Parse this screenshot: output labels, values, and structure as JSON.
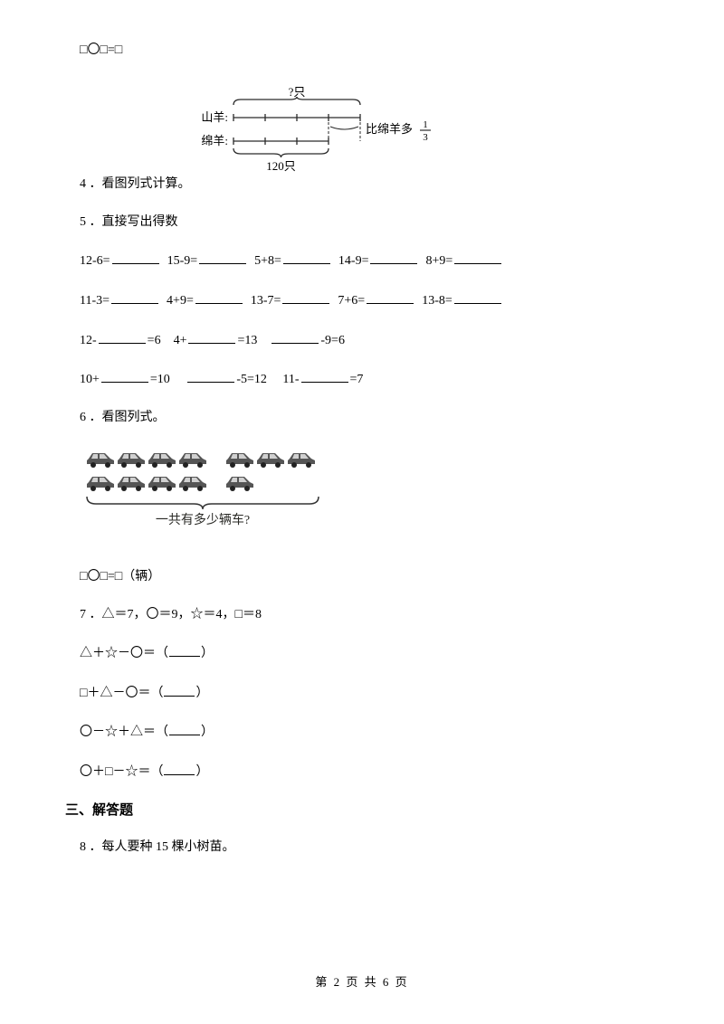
{
  "q_top": "□〇□=□",
  "diagram1": {
    "top_label": "?只",
    "row1_label": "山羊:",
    "row2_label": "绵羊:",
    "right_note_prefix": "比绵羊多",
    "right_note_frac_num": "1",
    "right_note_frac_den": "3",
    "bottom_label": "120只",
    "color_line": "#2a2a2a",
    "color_text": "#000000"
  },
  "q4": "4 ．看图列式计算。",
  "q5": "5 ．直接写出得数",
  "q5_rows": [
    [
      "12-6=",
      "15-9=",
      "5+8=",
      "14-9=",
      "8+9="
    ],
    [
      "11-3=",
      "4+9=",
      "13-7=",
      "7+6=",
      "13-8="
    ]
  ],
  "q5_row3": [
    "12-",
    "=6",
    "4+",
    "=13",
    "-9=6"
  ],
  "q5_row4": [
    "10+",
    "=10",
    "-5=12",
    "11-",
    "=7"
  ],
  "q6": "6 ．看图列式。",
  "cars": {
    "caption": "一共有多少辆车?",
    "top_left_count": 4,
    "top_right_count": 3,
    "bottom_left_count": 4,
    "bottom_right_count": 1,
    "car_color": "#555555",
    "bracket_color": "#333333",
    "text_color": "#2a2a26"
  },
  "q6_eq": "□〇□=□（辆）",
  "q7": "7 ．△＝7，〇＝9，☆＝4，□＝8",
  "q7_lines": [
    "△＋☆－〇＝（",
    "□＋△－〇＝（",
    "〇－☆＋△＝（",
    "〇＋□－☆＝（"
  ],
  "q7_suffix": "）",
  "section3": "三、解答题",
  "q8": "8 ．每人要种 15 棵小树苗。",
  "footer": "第 2 页 共 6 页"
}
